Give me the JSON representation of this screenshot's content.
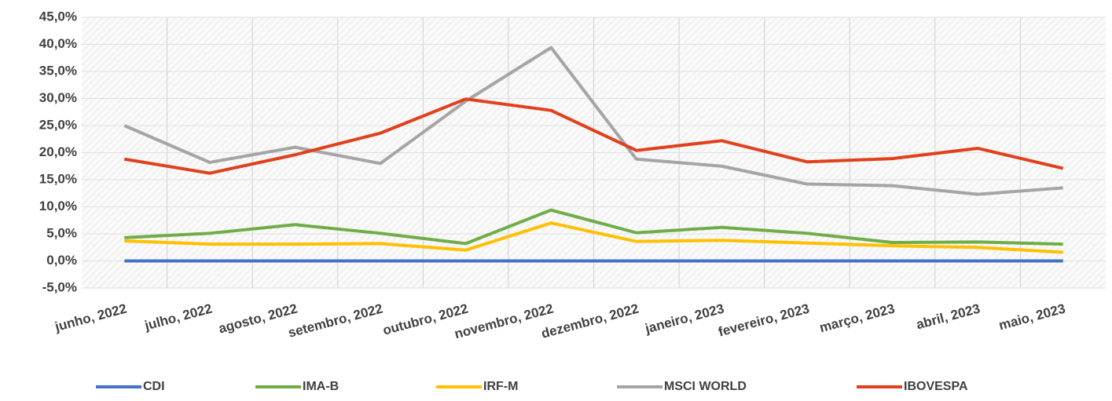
{
  "chart_data": {
    "type": "line",
    "categories": [
      "junho, 2022",
      "julho, 2022",
      "agosto, 2022",
      "setembro, 2022",
      "outubro, 2022",
      "novembro, 2022",
      "dezembro, 2022",
      "janeiro, 2023",
      "fevereiro, 2023",
      "março, 2023",
      "abril, 2023",
      "maio, 2023"
    ],
    "series": [
      {
        "name": "CDI",
        "color": "#4472c4",
        "values": [
          0,
          0,
          0,
          0,
          0,
          0,
          0,
          0,
          0,
          0,
          0,
          0
        ]
      },
      {
        "name": "IMA-B",
        "color": "#70ad47",
        "values": [
          4.3,
          5.1,
          6.7,
          5.1,
          3.2,
          9.4,
          5.2,
          6.2,
          5.1,
          3.4,
          3.5,
          3.1
        ]
      },
      {
        "name": "IRF-M",
        "color": "#ffc000",
        "values": [
          3.7,
          3.1,
          3.1,
          3.2,
          2.0,
          7.0,
          3.6,
          3.8,
          3.3,
          2.8,
          2.5,
          1.6
        ]
      },
      {
        "name": "MSCI WORLD",
        "color": "#a5a5a5",
        "values": [
          25.0,
          18.2,
          21.0,
          18.0,
          29.5,
          39.4,
          18.8,
          17.5,
          14.2,
          13.9,
          12.3,
          13.5
        ]
      },
      {
        "name": "IBOVESPA",
        "color": "#e2401c",
        "values": [
          18.8,
          16.2,
          19.6,
          23.6,
          29.9,
          27.8,
          20.4,
          22.2,
          18.3,
          18.9,
          20.8,
          17.1
        ]
      }
    ],
    "ylim": [
      -5,
      45
    ],
    "yticks": [
      {
        "value": -5,
        "label": "-5,0%"
      },
      {
        "value": 0,
        "label": "0,0%"
      },
      {
        "value": 5,
        "label": "5,0%"
      },
      {
        "value": 10,
        "label": "10,0%"
      },
      {
        "value": 15,
        "label": "15,0%"
      },
      {
        "value": 20,
        "label": "20,0%"
      },
      {
        "value": 25,
        "label": "25,0%"
      },
      {
        "value": 30,
        "label": "30,0%"
      },
      {
        "value": 35,
        "label": "35,0%"
      },
      {
        "value": 40,
        "label": "40,0%"
      },
      {
        "value": 45,
        "label": "45,0%"
      }
    ],
    "grid": true,
    "legend": "bottom"
  }
}
